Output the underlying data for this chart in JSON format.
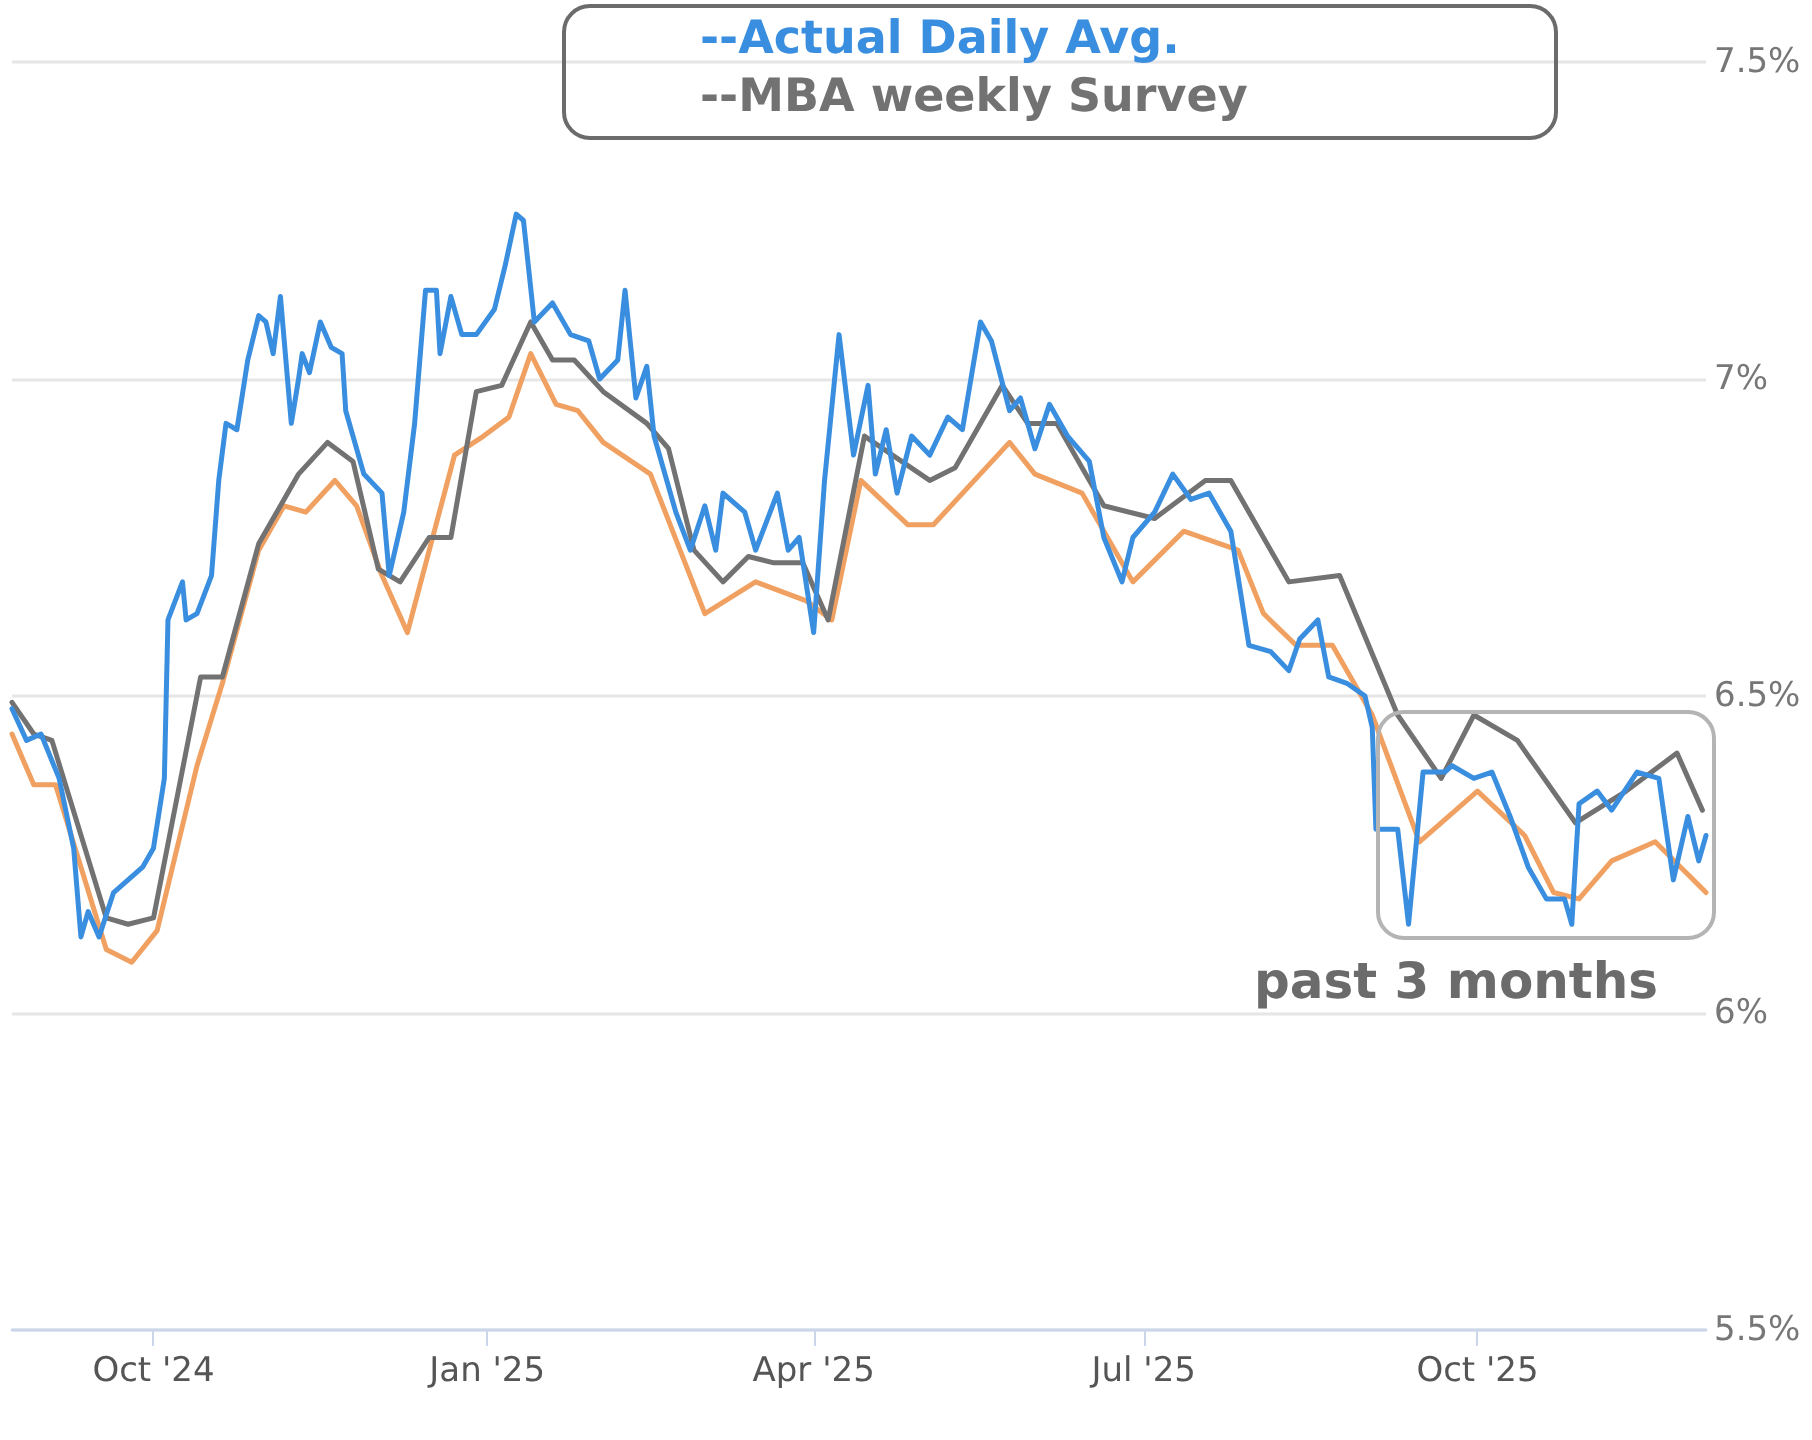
{
  "chart_data": {
    "type": "line",
    "annotations": [
      "past 3 months"
    ],
    "xlim": [
      "2024-08-23",
      "2025-12-03"
    ],
    "xticks": [
      {
        "value": "2024-10-01",
        "label": "Oct '24"
      },
      {
        "value": "2025-01-01",
        "label": "Jan '25"
      },
      {
        "value": "2025-04-01",
        "label": "Apr '25"
      },
      {
        "value": "2025-07-01",
        "label": "Jul '25"
      },
      {
        "value": "2025-10-01",
        "label": "Oct '25"
      }
    ],
    "ylim": [
      5.5,
      7.5
    ],
    "yticks": [
      {
        "value": 5.5,
        "label": "5.5%"
      },
      {
        "value": 6,
        "label": "6%"
      },
      {
        "value": 6.5,
        "label": "6.5%"
      },
      {
        "value": 7,
        "label": "7%"
      },
      {
        "value": 7.5,
        "label": "7.5%"
      }
    ],
    "grid": "y",
    "legend": "top",
    "marker": "none",
    "line_style": "solid",
    "series": [
      {
        "color": "#f0a060",
        "x": [
          "2024-08-23",
          "2024-08-29",
          "2024-09-04",
          "2024-09-18",
          "2024-09-25",
          "2024-10-02",
          "2024-10-13",
          "2024-10-20",
          "2024-10-30",
          "2024-11-06",
          "2024-11-12",
          "2024-11-20",
          "2024-11-26",
          "2024-12-03",
          "2024-12-10",
          "2024-12-23",
          "2024-12-31",
          "2025-01-07",
          "2025-01-13",
          "2025-01-20",
          "2025-01-26",
          "2025-02-02",
          "2025-02-15",
          "2025-03-02",
          "2025-03-16",
          "2025-03-30",
          "2025-04-06",
          "2025-04-14",
          "2025-04-27",
          "2025-05-04",
          "2025-05-25",
          "2025-06-01",
          "2025-06-14",
          "2025-06-28",
          "2025-07-12",
          "2025-07-27",
          "2025-08-03",
          "2025-08-12",
          "2025-08-22",
          "2025-09-02",
          "2025-09-15",
          "2025-10-01",
          "2025-10-14",
          "2025-10-22",
          "2025-10-29",
          "2025-11-07",
          "2025-11-19",
          "2025-12-03"
        ],
        "values": [
          6.44,
          6.36,
          6.36,
          6.1,
          6.08,
          6.13,
          6.39,
          6.52,
          6.73,
          6.8,
          6.79,
          6.84,
          6.8,
          6.69,
          6.6,
          6.88,
          6.91,
          6.94,
          7.04,
          6.96,
          6.95,
          6.9,
          6.85,
          6.63,
          6.68,
          6.65,
          6.62,
          6.84,
          6.77,
          6.77,
          6.9,
          6.85,
          6.82,
          6.68,
          6.76,
          6.73,
          6.63,
          6.58,
          6.58,
          6.47,
          6.27,
          6.35,
          6.28,
          6.19,
          6.18,
          6.24,
          6.27,
          6.19
        ]
      },
      {
        "name": "--MBA weekly Survey",
        "color": "#727272",
        "x": [
          "2024-08-23",
          "2024-08-29",
          "2024-09-03",
          "2024-09-18",
          "2024-09-24",
          "2024-10-01",
          "2024-10-14",
          "2024-10-20",
          "2024-10-30",
          "2024-11-10",
          "2024-11-18",
          "2024-11-25",
          "2024-12-02",
          "2024-12-08",
          "2024-12-16",
          "2024-12-22",
          "2024-12-29",
          "2025-01-05",
          "2025-01-13",
          "2025-01-19",
          "2025-01-25",
          "2025-02-02",
          "2025-02-14",
          "2025-02-20",
          "2025-02-27",
          "2025-03-07",
          "2025-03-14",
          "2025-03-21",
          "2025-03-29",
          "2025-04-05",
          "2025-04-15",
          "2025-05-03",
          "2025-05-10",
          "2025-05-23",
          "2025-05-30",
          "2025-06-07",
          "2025-06-20",
          "2025-07-04",
          "2025-07-18",
          "2025-07-25",
          "2025-08-10",
          "2025-08-24",
          "2025-09-09",
          "2025-09-21",
          "2025-09-30",
          "2025-10-12",
          "2025-10-28",
          "2025-11-11",
          "2025-11-25",
          "2025-12-02"
        ],
        "values": [
          6.49,
          6.44,
          6.43,
          6.15,
          6.14,
          6.15,
          6.53,
          6.53,
          6.74,
          6.85,
          6.9,
          6.87,
          6.7,
          6.68,
          6.75,
          6.75,
          6.98,
          6.99,
          7.09,
          7.03,
          7.03,
          6.98,
          6.93,
          6.89,
          6.73,
          6.68,
          6.72,
          6.71,
          6.71,
          6.62,
          6.91,
          6.84,
          6.86,
          6.99,
          6.93,
          6.93,
          6.8,
          6.78,
          6.84,
          6.84,
          6.68,
          6.69,
          6.47,
          6.37,
          6.47,
          6.43,
          6.3,
          6.35,
          6.41,
          6.32
        ]
      },
      {
        "name": "--Actual Daily Avg.",
        "color": "#3a8ee0",
        "x": [
          "2024-08-23",
          "2024-08-27",
          "2024-08-31",
          "2024-09-05",
          "2024-09-09",
          "2024-09-11",
          "2024-09-13",
          "2024-09-16",
          "2024-09-20",
          "2024-09-24",
          "2024-09-28",
          "2024-10-01",
          "2024-10-04",
          "2024-10-05",
          "2024-10-09",
          "2024-10-10",
          "2024-10-13",
          "2024-10-17",
          "2024-10-19",
          "2024-10-21",
          "2024-10-24",
          "2024-10-27",
          "2024-10-30",
          "2024-11-01",
          "2024-11-03",
          "2024-11-05",
          "2024-11-08",
          "2024-11-10",
          "2024-11-11",
          "2024-11-13",
          "2024-11-16",
          "2024-11-19",
          "2024-11-22",
          "2024-11-23",
          "2024-11-28",
          "2024-12-03",
          "2024-12-05",
          "2024-12-09",
          "2024-12-12",
          "2024-12-15",
          "2024-12-18",
          "2024-12-19",
          "2024-12-22",
          "2024-12-25",
          "2024-12-29",
          "2025-01-03",
          "2025-01-06",
          "2025-01-09",
          "2025-01-11",
          "2025-01-14",
          "2025-01-19",
          "2025-01-24",
          "2025-01-29",
          "2025-02-01",
          "2025-02-06",
          "2025-02-08",
          "2025-02-11",
          "2025-02-14",
          "2025-02-16",
          "2025-02-22",
          "2025-02-26",
          "2025-03-02",
          "2025-03-05",
          "2025-03-07",
          "2025-03-13",
          "2025-03-16",
          "2025-03-22",
          "2025-03-25",
          "2025-03-28",
          "2025-04-01",
          "2025-04-04",
          "2025-04-08",
          "2025-04-12",
          "2025-04-16",
          "2025-04-18",
          "2025-04-21",
          "2025-04-24",
          "2025-04-28",
          "2025-05-03",
          "2025-05-08",
          "2025-05-12",
          "2025-05-17",
          "2025-05-20",
          "2025-05-25",
          "2025-05-28",
          "2025-06-01",
          "2025-06-05",
          "2025-06-10",
          "2025-06-16",
          "2025-06-20",
          "2025-06-25",
          "2025-06-28",
          "2025-07-04",
          "2025-07-09",
          "2025-07-14",
          "2025-07-19",
          "2025-07-25",
          "2025-07-30",
          "2025-08-05",
          "2025-08-10",
          "2025-08-13",
          "2025-08-18",
          "2025-08-21",
          "2025-08-26",
          "2025-08-31",
          "2025-09-02",
          "2025-09-03",
          "2025-09-09",
          "2025-09-12",
          "2025-09-16",
          "2025-09-22",
          "2025-09-24",
          "2025-09-30",
          "2025-10-05",
          "2025-10-10",
          "2025-10-15",
          "2025-10-20",
          "2025-10-25",
          "2025-10-27",
          "2025-10-29",
          "2025-11-03",
          "2025-11-07",
          "2025-11-14",
          "2025-11-20",
          "2025-11-24",
          "2025-11-28",
          "2025-12-01",
          "2025-12-03"
        ],
        "values": [
          6.48,
          6.43,
          6.44,
          6.37,
          6.26,
          6.12,
          6.16,
          6.12,
          6.19,
          6.21,
          6.23,
          6.26,
          6.37,
          6.62,
          6.68,
          6.62,
          6.63,
          6.69,
          6.84,
          6.93,
          6.92,
          7.03,
          7.1,
          7.09,
          7.04,
          7.13,
          6.93,
          7.0,
          7.04,
          7.01,
          7.09,
          7.05,
          7.04,
          6.95,
          6.85,
          6.82,
          6.69,
          6.79,
          6.93,
          7.14,
          7.14,
          7.04,
          7.13,
          7.07,
          7.07,
          7.11,
          7.18,
          7.26,
          7.25,
          7.09,
          7.12,
          7.07,
          7.06,
          7.0,
          7.03,
          7.14,
          6.97,
          7.02,
          6.91,
          6.79,
          6.73,
          6.8,
          6.73,
          6.82,
          6.79,
          6.73,
          6.82,
          6.73,
          6.75,
          6.6,
          6.84,
          7.07,
          6.88,
          6.99,
          6.85,
          6.92,
          6.82,
          6.91,
          6.88,
          6.94,
          6.92,
          7.09,
          7.06,
          6.95,
          6.97,
          6.89,
          6.96,
          6.91,
          6.87,
          6.75,
          6.68,
          6.75,
          6.79,
          6.85,
          6.81,
          6.82,
          6.76,
          6.58,
          6.57,
          6.54,
          6.59,
          6.62,
          6.53,
          6.52,
          6.5,
          6.45,
          6.29,
          6.29,
          6.14,
          6.38,
          6.38,
          6.39,
          6.37,
          6.38,
          6.31,
          6.23,
          6.18,
          6.18,
          6.14,
          6.33,
          6.35,
          6.32,
          6.38,
          6.37,
          6.21,
          6.31,
          6.24,
          6.28
        ]
      }
    ]
  }
}
